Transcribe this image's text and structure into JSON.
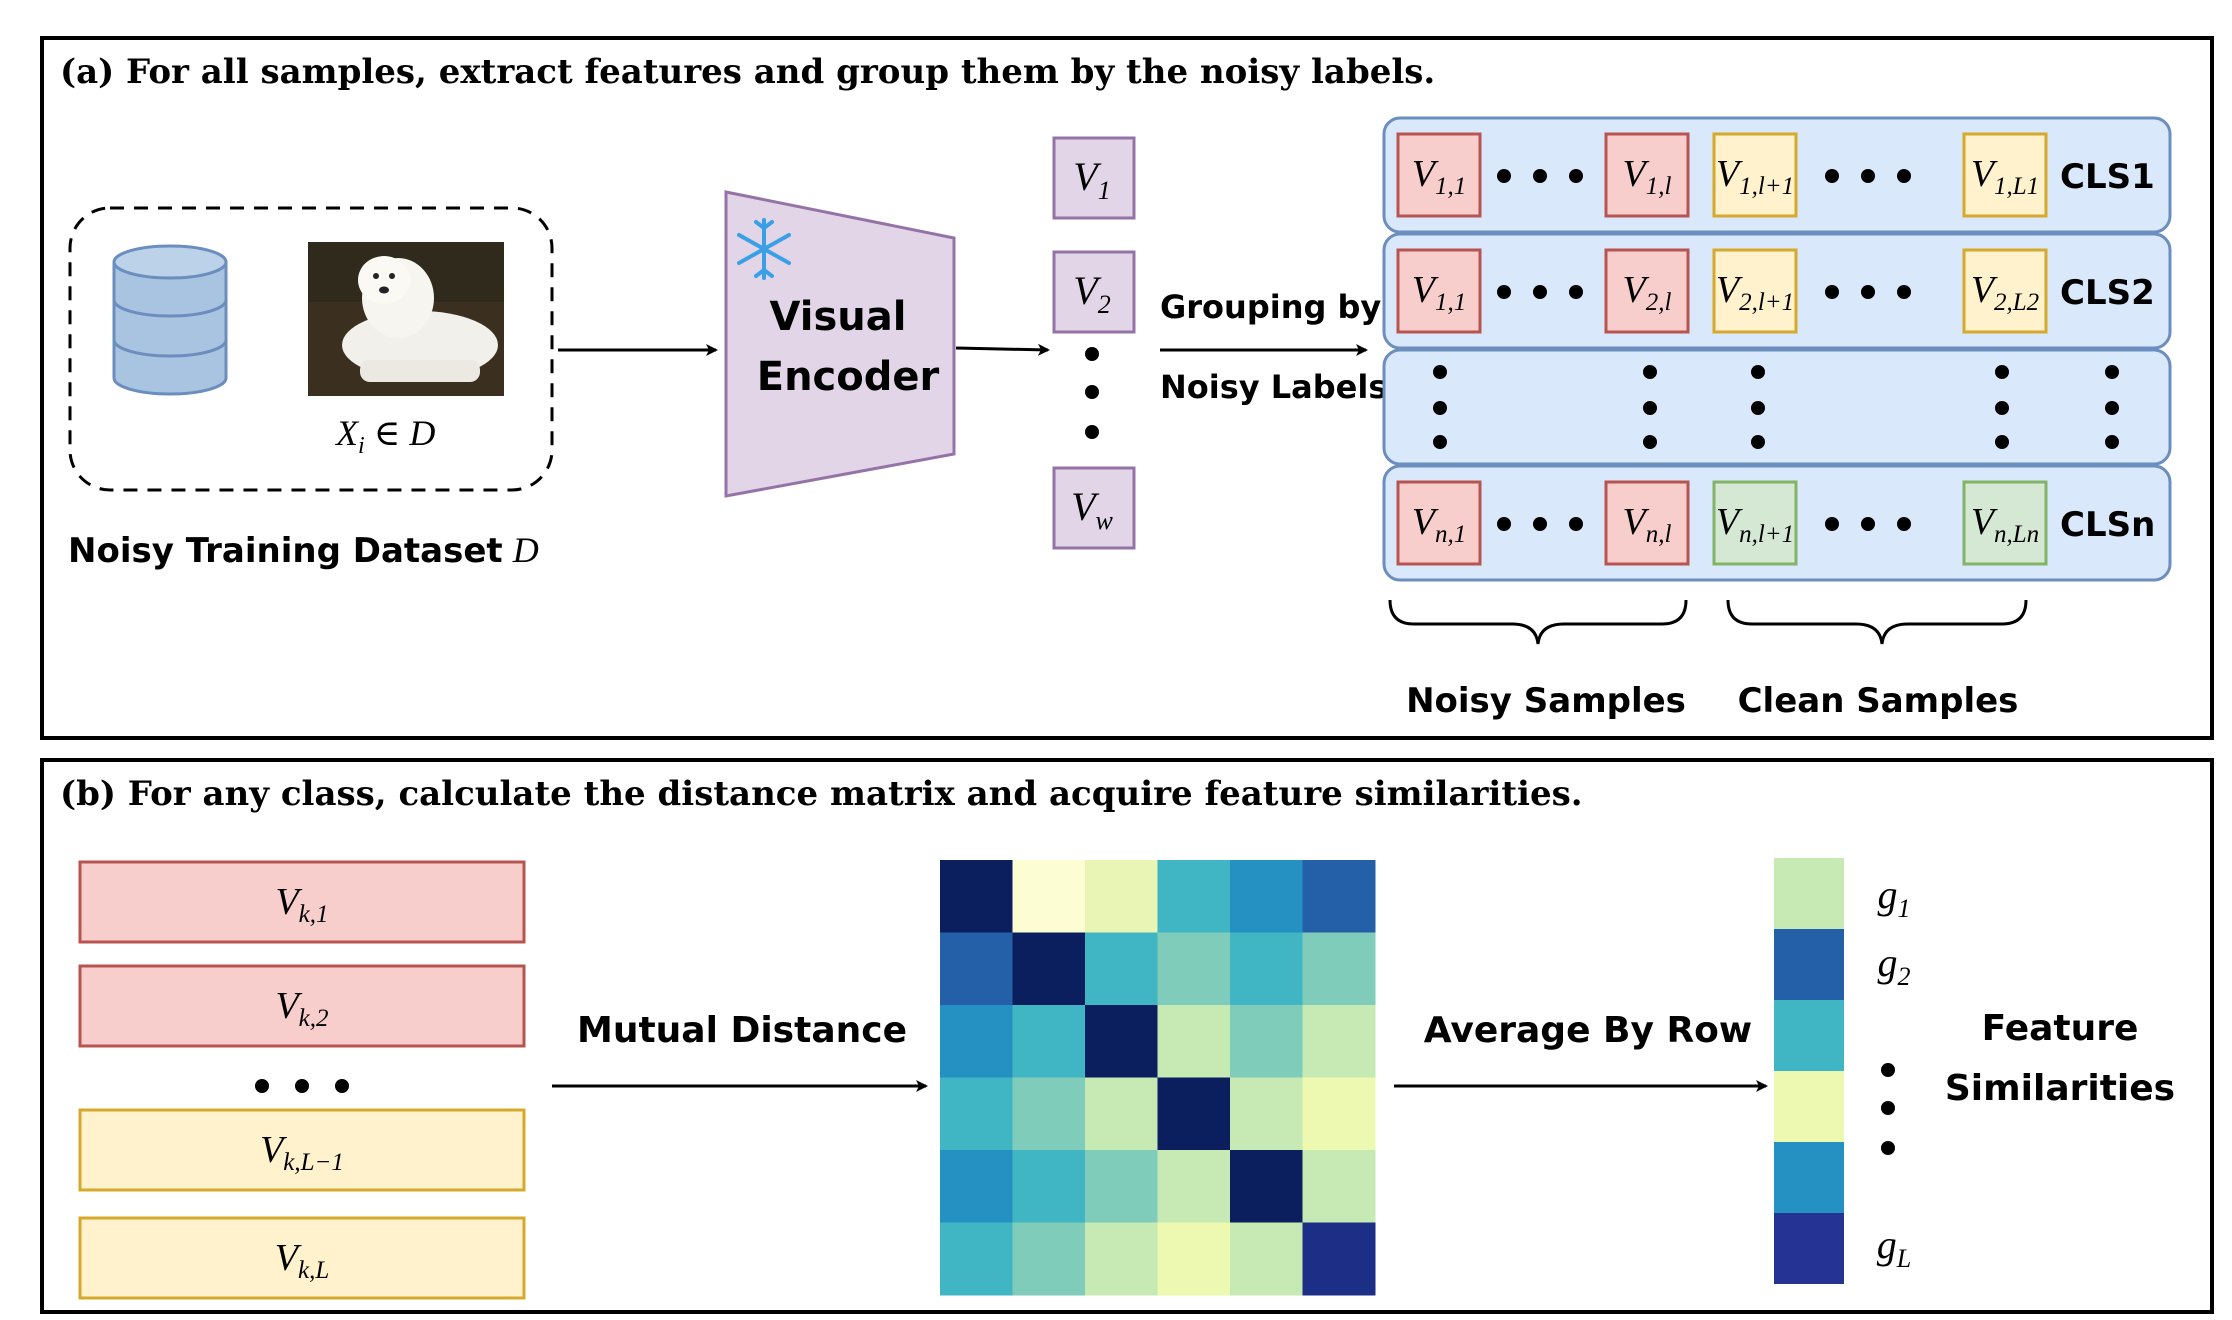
{
  "panel_a": {
    "title": "(a) For all samples, extract features and group them by the noisy labels.",
    "dataset_caption": "Noisy Training Dataset",
    "dataset_symbol": "D",
    "sample_label": "X",
    "sample_label_sub": "i",
    "sample_label_rest": " ∈ D",
    "encoder_line1": "Visual",
    "encoder_line2": "Encoder",
    "features": [
      {
        "main": "V",
        "sub": "1"
      },
      {
        "main": "V",
        "sub": "2"
      },
      {
        "main": "V",
        "sub": "w"
      }
    ],
    "grouping_line1": "Grouping by",
    "grouping_line2": "Noisy Labels",
    "rows": [
      {
        "class": "CLS1",
        "cells": [
          {
            "main": "V",
            "sub": "1,1",
            "kind": "noisy"
          },
          {
            "main": "V",
            "sub": "1,l",
            "kind": "noisy"
          },
          {
            "main": "V",
            "sub": "1,l+1",
            "kind": "clean"
          },
          {
            "main": "V",
            "sub": "1,L1",
            "kind": "clean"
          }
        ]
      },
      {
        "class": "CLS2",
        "cells": [
          {
            "main": "V",
            "sub": "1,1",
            "kind": "noisy"
          },
          {
            "main": "V",
            "sub": "2,l",
            "kind": "noisy"
          },
          {
            "main": "V",
            "sub": "2,l+1",
            "kind": "clean"
          },
          {
            "main": "V",
            "sub": "2,L2",
            "kind": "clean"
          }
        ]
      },
      {
        "class": "CLSn",
        "cells": [
          {
            "main": "V",
            "sub": "n,1",
            "kind": "noisy"
          },
          {
            "main": "V",
            "sub": "n,l",
            "kind": "noisy"
          },
          {
            "main": "V",
            "sub": "n,l+1",
            "kind": "green"
          },
          {
            "main": "V",
            "sub": "n,Ln",
            "kind": "green"
          }
        ]
      }
    ],
    "noisy_samples": "Noisy Samples",
    "clean_samples": "Clean Samples"
  },
  "panel_b": {
    "title": "(b) For any class, calculate the distance matrix and acquire feature similarities.",
    "features": [
      {
        "main": "V",
        "sub": "k,1",
        "kind": "noisy"
      },
      {
        "main": "V",
        "sub": "k,2",
        "kind": "noisy"
      },
      {
        "main": "V",
        "sub": "k,L−1",
        "kind": "clean"
      },
      {
        "main": "V",
        "sub": "k,L",
        "kind": "clean"
      }
    ],
    "mutual_distance": "Mutual Distance",
    "average_by_row": "Average By Row",
    "output_line1": "Feature",
    "output_line2": "Similarities",
    "g_labels": [
      {
        "main": "g",
        "sub": "1"
      },
      {
        "main": "g",
        "sub": "2"
      },
      {
        "main": "g",
        "sub": "L"
      }
    ],
    "heatmap": [
      [
        "#0b1f5e",
        "#fdfdd4",
        "#e8f5b5",
        "#40b5c4",
        "#2591c2",
        "#2360a8"
      ],
      [
        "#2360a8",
        "#0b1f5e",
        "#40b5c4",
        "#7fccbb",
        "#40b5c4",
        "#7fccbb"
      ],
      [
        "#2591c2",
        "#40b5c4",
        "#0b1f5e",
        "#c7e9b4",
        "#7fccbb",
        "#c7e9b4"
      ],
      [
        "#40b5c4",
        "#7fccbb",
        "#c7e9b4",
        "#0b1f5e",
        "#c7e9b4",
        "#edf8b1"
      ],
      [
        "#2591c2",
        "#40b5c4",
        "#7fccbb",
        "#c7e9b4",
        "#0b1f5e",
        "#c7e9b4"
      ],
      [
        "#40b5c4",
        "#7fccbb",
        "#c7e9b4",
        "#edf8b1",
        "#c7e9b4",
        "#1d2e86"
      ]
    ],
    "average_column": [
      "#c7e9b4",
      "#2360a8",
      "#40b5c4",
      "#edf8b1",
      "#2591c2",
      "#253494"
    ]
  },
  "colors": {
    "noisy_fill": "#f8cecc",
    "noisy_stroke": "#b85450",
    "clean_fill": "#fff2cc",
    "clean_stroke": "#d6a82c",
    "green_fill": "#d5e8d4",
    "green_stroke": "#82b366",
    "row_fill": "#dae8fc",
    "row_stroke": "#6c8ebf",
    "feature_fill": "#e1d5e7",
    "feature_stroke": "#9673a6"
  }
}
